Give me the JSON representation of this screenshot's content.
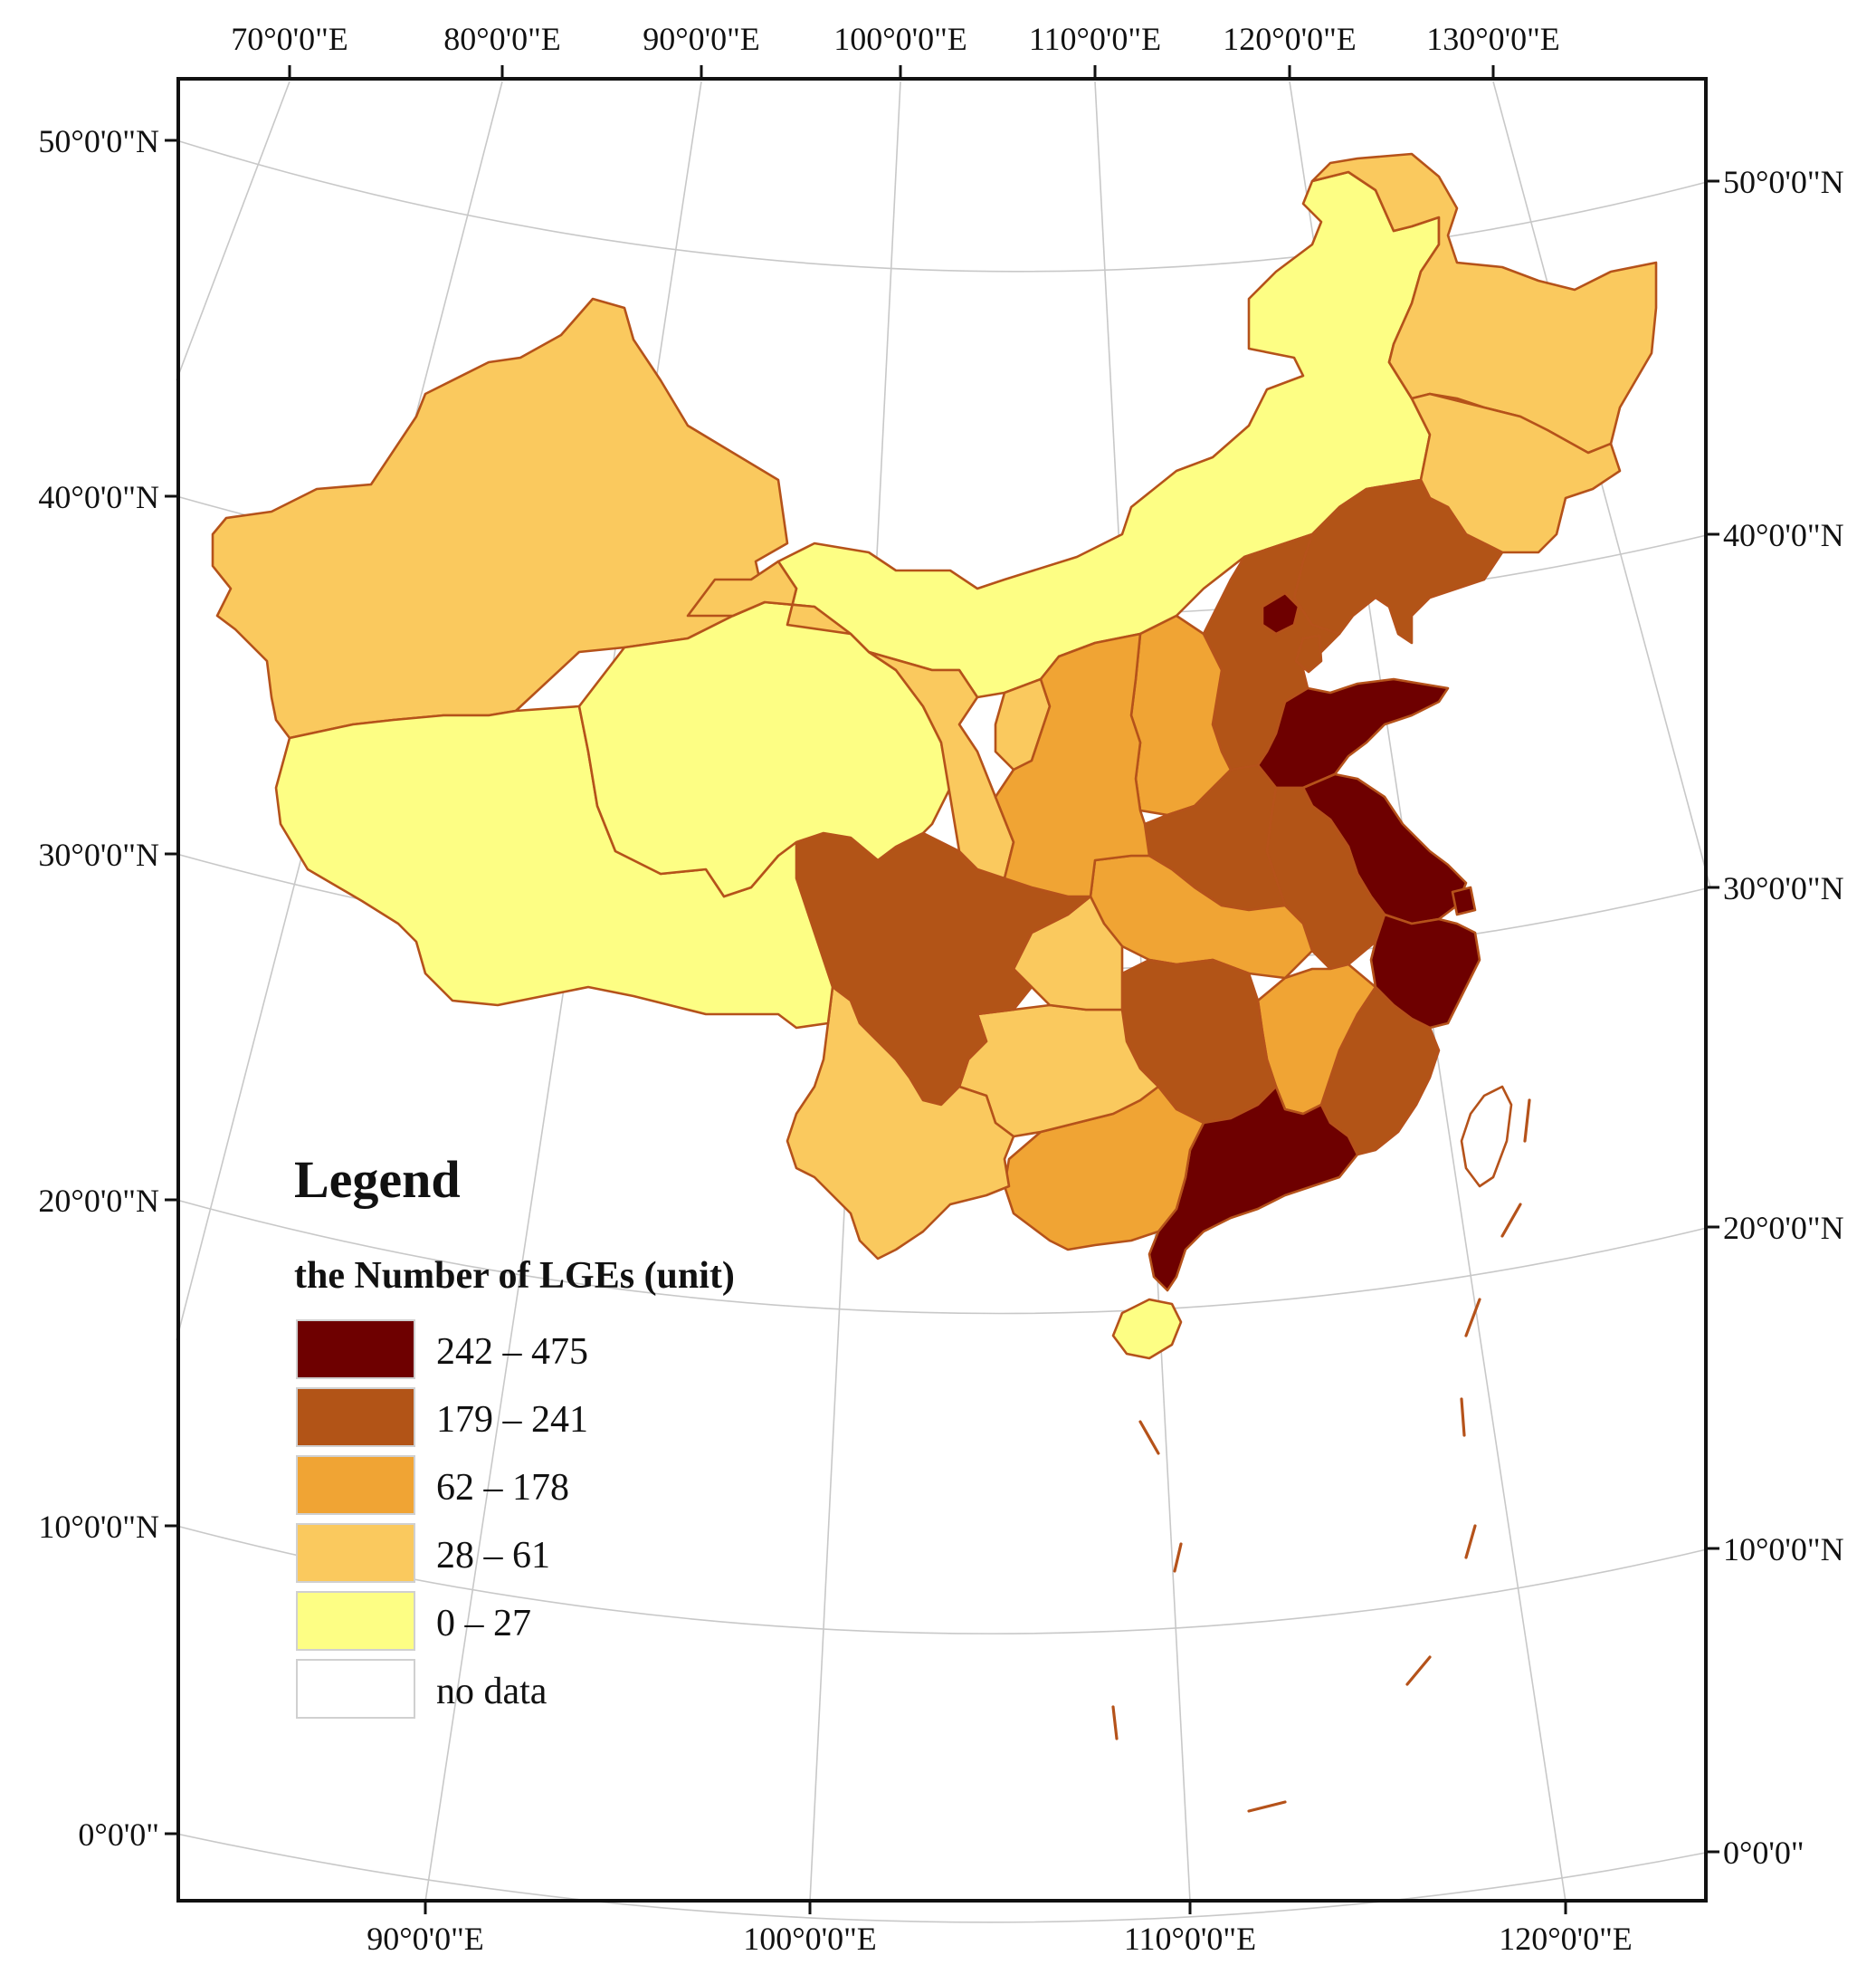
{
  "axes": {
    "top_labels": [
      "70°0'0\"E",
      "80°0'0\"E",
      "90°0'0\"E",
      "100°0'0\"E",
      "110°0'0\"E",
      "120°0'0\"E",
      "130°0'0\"E"
    ],
    "bottom_labels": [
      "90°0'0\"E",
      "100°0'0\"E",
      "110°0'0\"E",
      "120°0'0\"E"
    ],
    "left_labels": [
      "50°0'0\"N",
      "40°0'0\"N",
      "30°0'0\"N",
      "20°0'0\"N",
      "10°0'0\"N",
      "0°0'0\""
    ],
    "right_labels": [
      "50°0'0\"N",
      "40°0'0\"N",
      "30°0'0\"N",
      "20°0'0\"N",
      "10°0'0\"N",
      "0°0'0\""
    ]
  },
  "legend": {
    "title": "Legend",
    "subtitle": "the Number of LGEs (unit)",
    "classes": [
      {
        "label": "242 – 475",
        "color": "#6e0000"
      },
      {
        "label": "179 – 241",
        "color": "#b25417"
      },
      {
        "label": "62 – 178",
        "color": "#f0a434"
      },
      {
        "label": "28 – 61",
        "color": "#fac95e"
      },
      {
        "label": "0 – 27",
        "color": "#fdfe84"
      },
      {
        "label": "no data",
        "color": "#ffffff"
      }
    ]
  },
  "colors": {
    "class_242_475": "#6e0000",
    "class_179_241": "#b25417",
    "class_62_178": "#f0a434",
    "class_28_61": "#fac95e",
    "class_0_27": "#fdfe84",
    "border": "#b5521a"
  }
}
